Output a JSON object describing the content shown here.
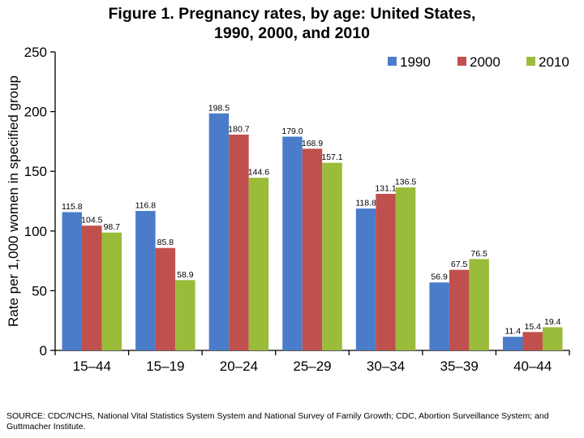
{
  "title_line1": "Figure 1. Pregnancy rates, by age: United States,",
  "title_line2": "1990, 2000, and 2010",
  "source": "SOURCE: CDC/NCHS, National Vital Statistics System System and National Survey of Family Growth; CDC, Abortion Surveillance System; and Guttmacher Institute.",
  "chart_data": {
    "type": "bar",
    "title": "Figure 1. Pregnancy rates, by age: United States, 1990, 2000, and 2010",
    "xlabel": "",
    "ylabel": "Rate per 1,000 women in specified group",
    "ylim": [
      0,
      250
    ],
    "yticks": [
      0,
      50,
      100,
      150,
      200,
      250
    ],
    "grid": false,
    "legend_position": "top-right",
    "categories": [
      "15–44",
      "15–19",
      "20–24",
      "25–29",
      "30–34",
      "35–39",
      "40–44"
    ],
    "series": [
      {
        "name": "1990",
        "color": "#4a7cc9",
        "values": [
          115.8,
          116.8,
          198.5,
          179.0,
          118.8,
          56.9,
          11.4
        ],
        "labels": [
          "115.8",
          "116.8",
          "198.5",
          "179.0",
          "118.8",
          "56.9",
          "11.4"
        ]
      },
      {
        "name": "2000",
        "color": "#c0504d",
        "values": [
          104.5,
          85.8,
          180.7,
          168.9,
          131.1,
          67.5,
          15.4
        ],
        "labels": [
          "104.5",
          "85.8",
          "180.7",
          "168.9",
          "131.1",
          "67.5",
          "15.4"
        ]
      },
      {
        "name": "2010",
        "color": "#9bbb3a",
        "values": [
          98.7,
          58.9,
          144.6,
          157.1,
          136.5,
          76.5,
          19.4
        ],
        "labels": [
          "98.7",
          "58.9",
          "144.6",
          "157.1",
          "136.5",
          "76.5",
          "19.4"
        ]
      }
    ]
  }
}
